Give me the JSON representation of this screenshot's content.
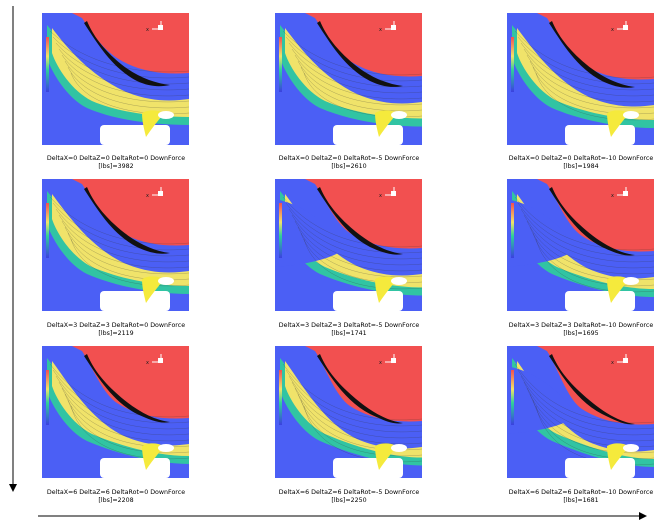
{
  "colors": {
    "high": "#f25050",
    "mid": "#f0e36a",
    "low": "#4b5ff5",
    "flap": "#f5ea3c",
    "wing": "#111111"
  },
  "rows": [
    {
      "deltaX": 0,
      "deltaZ": 0,
      "panels": [
        {
          "rot": 0,
          "line1": "DeltaX=0  DeltaZ=0  DeltaRot=0  DownForce",
          "line2": "[lbs]=3982"
        },
        {
          "rot": -5,
          "line1": "DeltaX=0  DeltaZ=0  DeltaRot=-5  DownForce",
          "line2": "[lbs]=2610"
        },
        {
          "rot": -10,
          "line1": "DeltaX=0  DeltaZ=0  DeltaRot=-10  DownForce",
          "line2": "[lbs]=1984"
        }
      ]
    },
    {
      "deltaX": 3,
      "deltaZ": 3,
      "panels": [
        {
          "rot": 0,
          "line1": "DeltaX=3  DeltaZ=3  DeltaRot=0  DownForce",
          "line2": "[lbs]=2119"
        },
        {
          "rot": -5,
          "line1": "DeltaX=3  DeltaZ=3  DeltaRot=-5  DownForce",
          "line2": "[lbs]=1741"
        },
        {
          "rot": -10,
          "line1": "DeltaX=3  DeltaZ=3  DeltaRot=-10  DownForce",
          "line2": "[lbs]=1695"
        }
      ]
    },
    {
      "deltaX": 6,
      "deltaZ": 6,
      "panels": [
        {
          "rot": 0,
          "line1": "DeltaX=6  DeltaZ=6  DeltaRot=0  DownForce",
          "line2": "[lbs]=2208"
        },
        {
          "rot": -5,
          "line1": "DeltaX=6  DeltaZ=6  DeltaRot=-5  DownForce",
          "line2": "[lbs]=2250"
        },
        {
          "rot": -10,
          "line1": "DeltaX=6  DeltaZ=6  DeltaRot=-10  DownForce",
          "line2": "[lbs]=1681"
        }
      ]
    }
  ],
  "axis_icon": {
    "label": "x"
  }
}
